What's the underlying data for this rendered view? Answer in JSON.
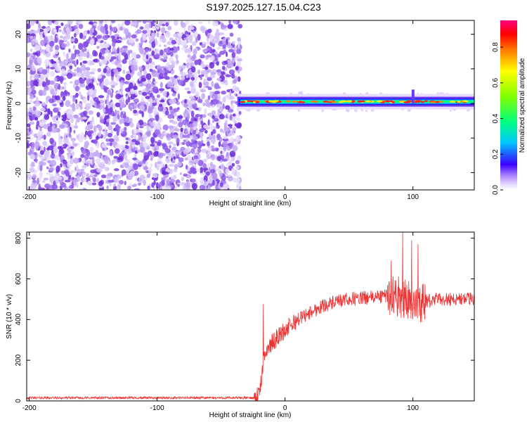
{
  "title": "S197.2025.127.15.04.C23",
  "chart_data": [
    {
      "type": "heatmap",
      "xlabel": "Height of straight line (km)",
      "ylabel": "Frequency (Hz)",
      "xlim": [
        -202,
        148
      ],
      "ylim": [
        -25,
        24
      ],
      "xticks": [
        -200,
        -100,
        0,
        100
      ],
      "yticks": [
        -20,
        -10,
        0,
        10,
        20
      ],
      "colorbar": {
        "label": "Normalized spectral amplitude",
        "range": [
          0,
          0.95
        ],
        "ticks": [
          0,
          0.2,
          0.4,
          0.6,
          0.8
        ],
        "tick_labels": [
          "0.0",
          "0.2",
          "0.4",
          "0.6",
          "0.8"
        ]
      },
      "regions": [
        {
          "x_range": [
            -202,
            -35
          ],
          "y_range": [
            -25,
            24
          ],
          "description": "broadband noise, amplitude ~0.05-0.25"
        },
        {
          "x_range": [
            -35,
            148
          ],
          "y_range": [
            -2,
            2
          ],
          "description": "narrow band centered near 0.5 Hz, amplitude up to ~0.9"
        }
      ]
    },
    {
      "type": "line",
      "xlabel": "Height of straight line (km)",
      "ylabel": "SNR (10 * v/v)",
      "xlim": [
        -202,
        148
      ],
      "ylim": [
        0,
        830
      ],
      "xticks": [
        -200,
        -100,
        0,
        100
      ],
      "yticks": [
        0,
        200,
        400,
        600,
        800
      ],
      "color": "#ee3333",
      "profile": {
        "x": [
          -202,
          -24,
          -20,
          -15,
          -5,
          10,
          30,
          50,
          70,
          85,
          95,
          105,
          120,
          148
        ],
        "y": [
          15,
          15,
          40,
          250,
          320,
          400,
          470,
          500,
          510,
          520,
          500,
          480,
          500,
          500
        ]
      },
      "peaks": [
        {
          "x": -17,
          "y": 475
        },
        {
          "x": 83,
          "y": 690
        },
        {
          "x": 92,
          "y": 830
        },
        {
          "x": 99,
          "y": 790
        },
        {
          "x": 104,
          "y": 770
        }
      ]
    }
  ]
}
